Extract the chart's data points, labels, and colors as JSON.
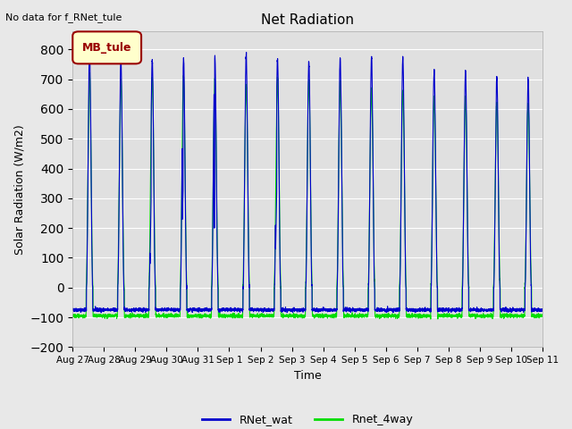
{
  "title": "Net Radiation",
  "xlabel": "Time",
  "ylabel": "Solar Radiation (W/m2)",
  "top_left_text": "No data for f_RNet_tule",
  "legend_label1": "RNet_wat",
  "legend_label2": "Rnet_4way",
  "legend_box_label": "MB_tule",
  "legend_box_color": "#ffffcc",
  "legend_box_edge_color": "#990000",
  "line_color1": "#0000cc",
  "line_color2": "#00dd00",
  "bg_color": "#e8e8e8",
  "plot_bg_color": "#e0e0e0",
  "ylim": [
    -200,
    860
  ],
  "yticks": [
    -200,
    -100,
    0,
    100,
    200,
    300,
    400,
    500,
    600,
    700,
    800
  ],
  "num_days": 15,
  "x_tick_labels": [
    "Aug 27",
    "Aug 28",
    "Aug 29",
    "Aug 30",
    "Aug 31",
    "Sep 1",
    "Sep 2",
    "Sep 3",
    "Sep 4",
    "Sep 5",
    "Sep 6",
    "Sep 7",
    "Sep 8",
    "Sep 9",
    "Sep 10",
    "Sep 11"
  ],
  "day_peaks_blue": [
    800,
    770,
    765,
    770,
    775,
    785,
    770,
    760,
    770,
    775,
    775,
    728,
    730,
    708,
    700
  ],
  "day_peaks_green": [
    720,
    700,
    705,
    710,
    700,
    680,
    700,
    695,
    690,
    665,
    660,
    640,
    638,
    622,
    618
  ],
  "night_val_blue": -75,
  "night_val_green": -95,
  "figsize": [
    6.4,
    4.8
  ],
  "dpi": 100
}
